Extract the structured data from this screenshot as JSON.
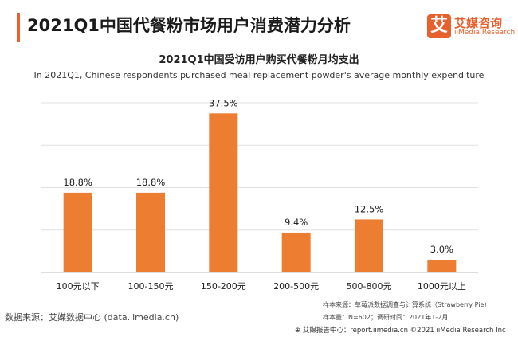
{
  "header": {
    "title": "2021Q1中国代餐粉市场用户消费潜力分析",
    "logo_mark": "艾",
    "logo_cn": "艾媒咨询",
    "logo_en": "iiMedia Research"
  },
  "chart_data": {
    "type": "bar",
    "title": "2021Q1中国受访用户购买代餐粉月均支出",
    "subtitle": "In 2021Q1, Chinese respondents purchased meal replacement powder's average monthly expenditure",
    "categories": [
      "100元以下",
      "100-150元",
      "150-200元",
      "200-500元",
      "500-800元",
      "1000元以上"
    ],
    "values": [
      18.8,
      18.8,
      37.5,
      9.4,
      12.5,
      3.0
    ],
    "labels": [
      "18.8%",
      "18.8%",
      "37.5%",
      "9.4%",
      "12.5%",
      "3.0%"
    ],
    "unit": "%",
    "ylim": [
      0,
      40
    ],
    "grid": true,
    "bar_color": "#ed7d31"
  },
  "footer": {
    "source": "数据来源：艾媒数据中心 (data.iimedia.cn)",
    "sample_source": "样本来源：草莓派数据调查与计算系统（Strawberry Pie）",
    "sample_size": "样本量：N=602；调研时间：2021年1-2月",
    "report": "艾媒报告中心：report.iimedia.cn  ©2021  iiMedia Research  Inc"
  }
}
